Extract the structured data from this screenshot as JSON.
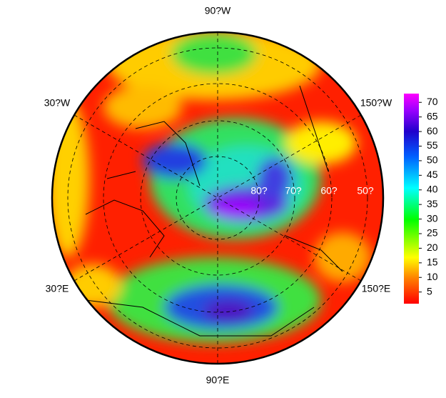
{
  "map": {
    "meridian_labels": {
      "top": "90?W",
      "upper_left": "30?W",
      "upper_right": "150?W",
      "lower_left": "30?E",
      "lower_right": "150?E",
      "bottom": "90?E"
    },
    "latitude_labels": [
      "80?",
      "70?",
      "60?",
      "50?"
    ]
  },
  "colorbar": {
    "lim": [
      1,
      73
    ],
    "ticks": [
      5,
      10,
      15,
      20,
      25,
      30,
      35,
      40,
      45,
      50,
      55,
      60,
      65,
      70
    ]
  }
}
